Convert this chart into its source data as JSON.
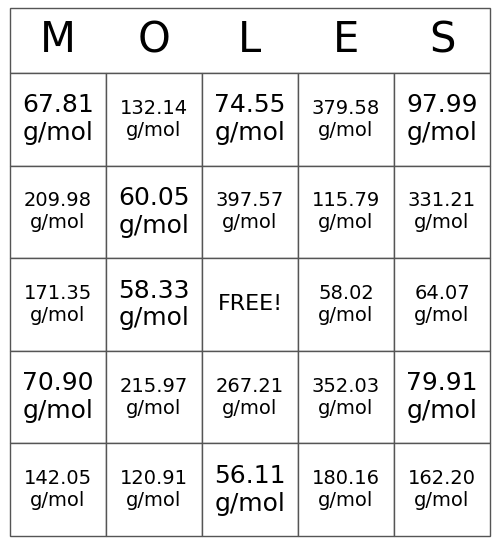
{
  "title_letters": [
    "M",
    "O",
    "L",
    "E",
    "S"
  ],
  "cells": [
    [
      "67.81\ng/mol",
      "132.14\ng/mol",
      "74.55\ng/mol",
      "379.58\ng/mol",
      "97.99\ng/mol"
    ],
    [
      "209.98\ng/mol",
      "60.05\ng/mol",
      "397.57\ng/mol",
      "115.79\ng/mol",
      "331.21\ng/mol"
    ],
    [
      "171.35\ng/mol",
      "58.33\ng/mol",
      "FREE!",
      "58.02\ng/mol",
      "64.07\ng/mol"
    ],
    [
      "70.90\ng/mol",
      "215.97\ng/mol",
      "267.21\ng/mol",
      "352.03\ng/mol",
      "79.91\ng/mol"
    ],
    [
      "142.05\ng/mol",
      "120.91\ng/mol",
      "56.11\ng/mol",
      "180.16\ng/mol",
      "162.20\ng/mol"
    ]
  ],
  "cell_fontsizes": [
    [
      18,
      14,
      18,
      14,
      18
    ],
    [
      14,
      18,
      14,
      14,
      14
    ],
    [
      14,
      18,
      16,
      14,
      14
    ],
    [
      18,
      14,
      14,
      14,
      18
    ],
    [
      14,
      14,
      18,
      14,
      14
    ]
  ],
  "background_color": "#ffffff",
  "grid_color": "#555555",
  "text_color": "#000000",
  "title_fontsize": 30,
  "fig_width": 5.0,
  "fig_height": 5.44
}
